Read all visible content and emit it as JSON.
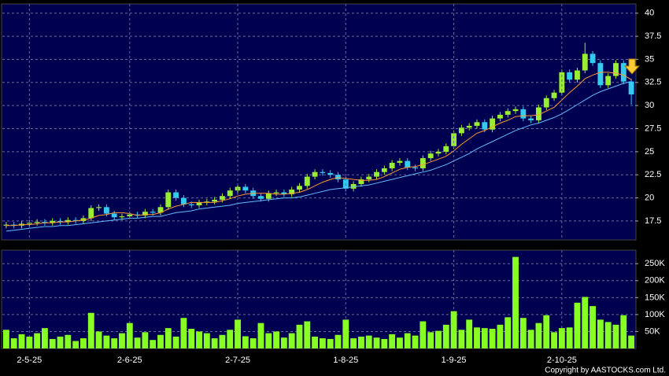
{
  "chart_data": [
    {
      "type": "candlestick",
      "ylim": [
        15.45,
        41.0
      ],
      "yticks": [
        17.5,
        20,
        22.5,
        25,
        27.5,
        30,
        32.5,
        35,
        37.5,
        40
      ],
      "grid": true,
      "up_color": "#99ee33",
      "down_color": "#33ccee",
      "open": [
        17.0,
        17.1,
        17.0,
        17.2,
        17.3,
        17.4,
        17.3,
        17.5,
        17.4,
        17.6,
        17.5,
        17.8,
        18.9,
        19.0,
        18.3,
        17.9,
        18.0,
        18.2,
        18.1,
        18.5,
        18.4,
        19.0,
        20.6,
        20.0,
        19.3,
        19.2,
        19.5,
        19.6,
        19.8,
        20.2,
        20.8,
        21.2,
        20.8,
        20.2,
        19.9,
        20.5,
        20.6,
        20.4,
        20.9,
        21.3,
        22.3,
        22.8,
        22.7,
        22.5,
        22.0,
        21.0,
        21.5,
        22.0,
        22.3,
        22.8,
        23.2,
        23.8,
        24.0,
        23.3,
        23.2,
        24.3,
        24.8,
        25.0,
        25.6,
        27.0,
        27.6,
        27.8,
        28.2,
        27.4,
        28.6,
        29.0,
        29.4,
        29.6,
        28.6,
        28.4,
        29.8,
        30.8,
        31.4,
        33.6,
        32.8,
        33.8,
        35.6,
        34.6,
        32.2,
        33.2,
        34.6,
        32.6
      ],
      "high": [
        17.4,
        17.4,
        17.5,
        17.6,
        17.7,
        17.7,
        17.8,
        17.8,
        17.9,
        17.9,
        18.1,
        19.2,
        19.3,
        19.3,
        18.6,
        18.3,
        18.5,
        18.5,
        18.8,
        18.8,
        19.3,
        20.9,
        20.9,
        20.3,
        19.6,
        19.8,
        19.9,
        20.1,
        20.5,
        21.1,
        21.5,
        21.5,
        21.1,
        20.5,
        20.8,
        20.9,
        20.9,
        21.2,
        21.6,
        22.6,
        23.1,
        23.1,
        23.0,
        22.8,
        22.3,
        21.8,
        22.3,
        22.6,
        23.1,
        23.5,
        24.1,
        24.3,
        24.3,
        23.6,
        24.6,
        25.1,
        25.3,
        25.9,
        27.3,
        27.9,
        28.1,
        28.5,
        28.5,
        28.9,
        29.3,
        29.7,
        29.9,
        29.9,
        28.9,
        30.1,
        31.1,
        31.7,
        33.9,
        33.9,
        34.1,
        36.8,
        35.9,
        34.9,
        33.5,
        34.9,
        34.9,
        32.9
      ],
      "low": [
        16.7,
        16.7,
        16.7,
        16.9,
        17.0,
        17.0,
        17.0,
        17.1,
        17.1,
        17.2,
        17.2,
        17.5,
        18.6,
        18.0,
        17.6,
        17.6,
        17.7,
        17.8,
        17.8,
        18.1,
        18.1,
        18.7,
        19.7,
        19.0,
        18.9,
        18.9,
        19.2,
        19.3,
        19.5,
        19.9,
        20.5,
        20.5,
        19.9,
        19.6,
        19.6,
        20.2,
        20.1,
        20.1,
        20.6,
        21.0,
        22.0,
        22.4,
        22.2,
        21.7,
        20.7,
        20.7,
        21.2,
        21.7,
        22.0,
        22.5,
        22.9,
        23.5,
        23.0,
        22.9,
        22.9,
        24.0,
        24.5,
        24.7,
        25.3,
        26.7,
        27.3,
        27.5,
        27.1,
        27.1,
        28.3,
        28.7,
        29.1,
        28.3,
        28.1,
        28.1,
        29.5,
        30.5,
        31.1,
        32.5,
        32.5,
        33.5,
        34.3,
        31.9,
        31.9,
        32.9,
        32.3,
        30.1
      ],
      "close": [
        17.1,
        17.0,
        17.2,
        17.3,
        17.4,
        17.3,
        17.5,
        17.4,
        17.6,
        17.5,
        17.8,
        18.9,
        19.0,
        18.3,
        17.9,
        18.0,
        18.2,
        18.1,
        18.5,
        18.4,
        19.0,
        20.6,
        20.0,
        19.3,
        19.2,
        19.5,
        19.6,
        19.8,
        20.2,
        20.8,
        21.2,
        20.8,
        20.2,
        19.9,
        20.5,
        20.6,
        20.4,
        20.9,
        21.3,
        22.3,
        22.8,
        22.7,
        22.5,
        22.0,
        21.0,
        21.5,
        22.0,
        22.3,
        22.8,
        23.2,
        23.8,
        24.0,
        23.3,
        23.2,
        24.3,
        24.8,
        25.0,
        25.6,
        27.0,
        27.6,
        27.8,
        28.2,
        27.4,
        28.6,
        29.0,
        29.4,
        29.6,
        28.6,
        28.4,
        29.8,
        30.8,
        31.4,
        33.6,
        32.8,
        33.8,
        35.6,
        34.6,
        32.2,
        33.2,
        34.6,
        32.6,
        31.2
      ],
      "ma": [
        {
          "color": "#ff9933",
          "values": [
            17.0,
            17.0,
            17.1,
            17.1,
            17.2,
            17.3,
            17.3,
            17.4,
            17.4,
            17.5,
            17.6,
            17.8,
            18.1,
            18.2,
            18.4,
            18.4,
            18.3,
            18.1,
            18.2,
            18.2,
            18.4,
            18.8,
            19.1,
            19.3,
            19.5,
            19.5,
            19.5,
            19.5,
            19.7,
            19.9,
            20.2,
            20.4,
            20.5,
            20.5,
            20.5,
            20.4,
            20.4,
            20.5,
            20.6,
            20.9,
            21.3,
            21.7,
            22.0,
            22.2,
            22.1,
            22.0,
            21.9,
            21.9,
            22.0,
            22.3,
            22.7,
            23.1,
            23.3,
            23.4,
            23.6,
            23.9,
            24.2,
            24.5,
            25.1,
            25.8,
            26.4,
            27.0,
            27.3,
            27.7,
            28.1,
            28.4,
            28.8,
            28.9,
            28.9,
            29.0,
            29.4,
            29.8,
            30.6,
            31.4,
            32.1,
            32.9,
            33.3,
            33.6,
            33.6,
            33.5,
            33.3,
            32.8
          ]
        },
        {
          "color": "#66bbff",
          "values": [
            16.4,
            16.5,
            16.6,
            16.7,
            16.8,
            16.9,
            16.9,
            17.0,
            17.0,
            17.1,
            17.2,
            17.3,
            17.4,
            17.5,
            17.6,
            17.7,
            17.8,
            17.8,
            17.9,
            18.0,
            18.0,
            18.2,
            18.4,
            18.5,
            18.6,
            18.8,
            18.9,
            19.0,
            19.1,
            19.2,
            19.4,
            19.5,
            19.6,
            19.7,
            19.8,
            19.9,
            20.0,
            20.0,
            20.1,
            20.3,
            20.5,
            20.7,
            20.9,
            21.0,
            21.1,
            21.2,
            21.3,
            21.4,
            21.6,
            21.8,
            22.0,
            22.2,
            22.4,
            22.6,
            22.8,
            23.0,
            23.3,
            23.6,
            24.0,
            24.4,
            24.8,
            25.3,
            25.7,
            26.1,
            26.5,
            26.9,
            27.3,
            27.6,
            27.9,
            28.1,
            28.4,
            28.7,
            29.1,
            29.6,
            30.1,
            30.6,
            31.1,
            31.5,
            31.8,
            32.1,
            32.4,
            32.6
          ]
        }
      ]
    },
    {
      "type": "bar",
      "ylim": [
        0,
        290000
      ],
      "yticks": [
        {
          "value": 50000,
          "label": "50K"
        },
        {
          "value": 100000,
          "label": "100K"
        },
        {
          "value": 150000,
          "label": "150K"
        },
        {
          "value": 200000,
          "label": "200K"
        },
        {
          "value": 250000,
          "label": "250K"
        }
      ],
      "grid": true,
      "color": "#88ff22",
      "categories": [
        null,
        null,
        null,
        "2-5-25",
        null,
        null,
        null,
        null,
        null,
        null,
        null,
        null,
        null,
        null,
        null,
        null,
        "2-6-25",
        null,
        null,
        null,
        null,
        null,
        null,
        null,
        null,
        null,
        null,
        null,
        null,
        null,
        "2-7-25",
        null,
        null,
        null,
        null,
        null,
        null,
        null,
        null,
        null,
        null,
        null,
        null,
        null,
        "1-8-25",
        null,
        null,
        null,
        null,
        null,
        null,
        null,
        null,
        null,
        null,
        null,
        null,
        null,
        "1-9-25",
        null,
        null,
        null,
        null,
        null,
        null,
        null,
        null,
        null,
        null,
        null,
        null,
        null,
        "2-10-25",
        null,
        null,
        null,
        null,
        null,
        null,
        null,
        null,
        null
      ],
      "values": [
        55000,
        30000,
        42000,
        35000,
        45000,
        60000,
        28000,
        35000,
        40000,
        22000,
        30000,
        105000,
        50000,
        38000,
        30000,
        45000,
        75000,
        32000,
        48000,
        25000,
        40000,
        60000,
        35000,
        90000,
        58000,
        50000,
        45000,
        30000,
        40000,
        55000,
        85000,
        36000,
        30000,
        75000,
        45000,
        50000,
        32000,
        45000,
        70000,
        80000,
        35000,
        30000,
        28000,
        40000,
        85000,
        30000,
        35000,
        38000,
        32000,
        28000,
        42000,
        32000,
        45000,
        38000,
        80000,
        48000,
        52000,
        70000,
        110000,
        55000,
        85000,
        62000,
        60000,
        58000,
        70000,
        92000,
        270000,
        90000,
        55000,
        75000,
        98000,
        48000,
        60000,
        62000,
        135000,
        152000,
        125000,
        85000,
        78000,
        70000,
        98000,
        38000
      ]
    }
  ],
  "footer": "Copyright by AASTOCKS.com Ltd."
}
